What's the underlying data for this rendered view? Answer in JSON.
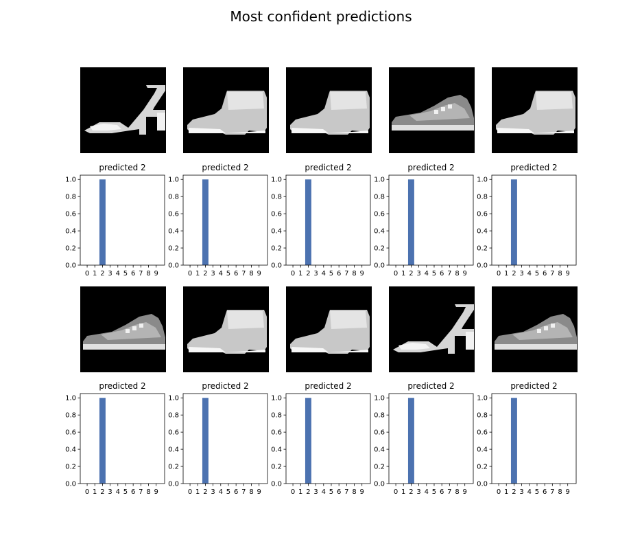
{
  "title": "Most confident predictions",
  "colors": {
    "bar": "#4c72b0",
    "image_bg": "#000000"
  },
  "image_icons": [
    "sandal-icon",
    "ankle-boot-icon",
    "ankle-boot-icon",
    "sneaker-icon",
    "ankle-boot-icon",
    "sneaker-icon",
    "ankle-boot-icon",
    "ankle-boot-icon",
    "sandal-icon",
    "sneaker-icon"
  ],
  "chart_data": [
    {
      "type": "bar",
      "title": "predicted 2",
      "categories": [
        "0",
        "1",
        "2",
        "3",
        "4",
        "5",
        "6",
        "7",
        "8",
        "9"
      ],
      "values": [
        0,
        0,
        1.0,
        0,
        0,
        0,
        0,
        0,
        0,
        0
      ],
      "ylim": [
        0,
        1.05
      ],
      "yticks": [
        "0.0",
        "0.2",
        "0.4",
        "0.6",
        "0.8",
        "1.0"
      ],
      "grid": false
    },
    {
      "type": "bar",
      "title": "predicted 2",
      "categories": [
        "0",
        "1",
        "2",
        "3",
        "4",
        "5",
        "6",
        "7",
        "8",
        "9"
      ],
      "values": [
        0,
        0,
        1.0,
        0,
        0,
        0,
        0,
        0,
        0,
        0
      ],
      "ylim": [
        0,
        1.05
      ],
      "yticks": [
        "0.0",
        "0.2",
        "0.4",
        "0.6",
        "0.8",
        "1.0"
      ],
      "grid": false
    },
    {
      "type": "bar",
      "title": "predicted 2",
      "categories": [
        "0",
        "1",
        "2",
        "3",
        "4",
        "5",
        "6",
        "7",
        "8",
        "9"
      ],
      "values": [
        0,
        0,
        1.0,
        0,
        0,
        0,
        0,
        0,
        0,
        0
      ],
      "ylim": [
        0,
        1.05
      ],
      "yticks": [
        "0.0",
        "0.2",
        "0.4",
        "0.6",
        "0.8",
        "1.0"
      ],
      "grid": false
    },
    {
      "type": "bar",
      "title": "predicted 2",
      "categories": [
        "0",
        "1",
        "2",
        "3",
        "4",
        "5",
        "6",
        "7",
        "8",
        "9"
      ],
      "values": [
        0,
        0,
        1.0,
        0,
        0,
        0,
        0,
        0,
        0,
        0
      ],
      "ylim": [
        0,
        1.05
      ],
      "yticks": [
        "0.0",
        "0.2",
        "0.4",
        "0.6",
        "0.8",
        "1.0"
      ],
      "grid": false
    },
    {
      "type": "bar",
      "title": "predicted 2",
      "categories": [
        "0",
        "1",
        "2",
        "3",
        "4",
        "5",
        "6",
        "7",
        "8",
        "9"
      ],
      "values": [
        0,
        0,
        1.0,
        0,
        0,
        0,
        0,
        0,
        0,
        0
      ],
      "ylim": [
        0,
        1.05
      ],
      "yticks": [
        "0.0",
        "0.2",
        "0.4",
        "0.6",
        "0.8",
        "1.0"
      ],
      "grid": false
    },
    {
      "type": "bar",
      "title": "predicted 2",
      "categories": [
        "0",
        "1",
        "2",
        "3",
        "4",
        "5",
        "6",
        "7",
        "8",
        "9"
      ],
      "values": [
        0,
        0,
        1.0,
        0,
        0,
        0,
        0,
        0,
        0,
        0
      ],
      "ylim": [
        0,
        1.05
      ],
      "yticks": [
        "0.0",
        "0.2",
        "0.4",
        "0.6",
        "0.8",
        "1.0"
      ],
      "grid": false
    },
    {
      "type": "bar",
      "title": "predicted 2",
      "categories": [
        "0",
        "1",
        "2",
        "3",
        "4",
        "5",
        "6",
        "7",
        "8",
        "9"
      ],
      "values": [
        0,
        0,
        1.0,
        0,
        0,
        0,
        0,
        0,
        0,
        0
      ],
      "ylim": [
        0,
        1.05
      ],
      "yticks": [
        "0.0",
        "0.2",
        "0.4",
        "0.6",
        "0.8",
        "1.0"
      ],
      "grid": false
    },
    {
      "type": "bar",
      "title": "predicted 2",
      "categories": [
        "0",
        "1",
        "2",
        "3",
        "4",
        "5",
        "6",
        "7",
        "8",
        "9"
      ],
      "values": [
        0,
        0,
        1.0,
        0,
        0,
        0,
        0,
        0,
        0,
        0
      ],
      "ylim": [
        0,
        1.05
      ],
      "yticks": [
        "0.0",
        "0.2",
        "0.4",
        "0.6",
        "0.8",
        "1.0"
      ],
      "grid": false
    },
    {
      "type": "bar",
      "title": "predicted 2",
      "categories": [
        "0",
        "1",
        "2",
        "3",
        "4",
        "5",
        "6",
        "7",
        "8",
        "9"
      ],
      "values": [
        0,
        0,
        1.0,
        0,
        0,
        0,
        0,
        0,
        0,
        0
      ],
      "ylim": [
        0,
        1.05
      ],
      "yticks": [
        "0.0",
        "0.2",
        "0.4",
        "0.6",
        "0.8",
        "1.0"
      ],
      "grid": false
    },
    {
      "type": "bar",
      "title": "predicted 2",
      "categories": [
        "0",
        "1",
        "2",
        "3",
        "4",
        "5",
        "6",
        "7",
        "8",
        "9"
      ],
      "values": [
        0,
        0,
        1.0,
        0,
        0,
        0,
        0,
        0,
        0,
        0
      ],
      "ylim": [
        0,
        1.05
      ],
      "yticks": [
        "0.0",
        "0.2",
        "0.4",
        "0.6",
        "0.8",
        "1.0"
      ],
      "grid": false
    }
  ]
}
